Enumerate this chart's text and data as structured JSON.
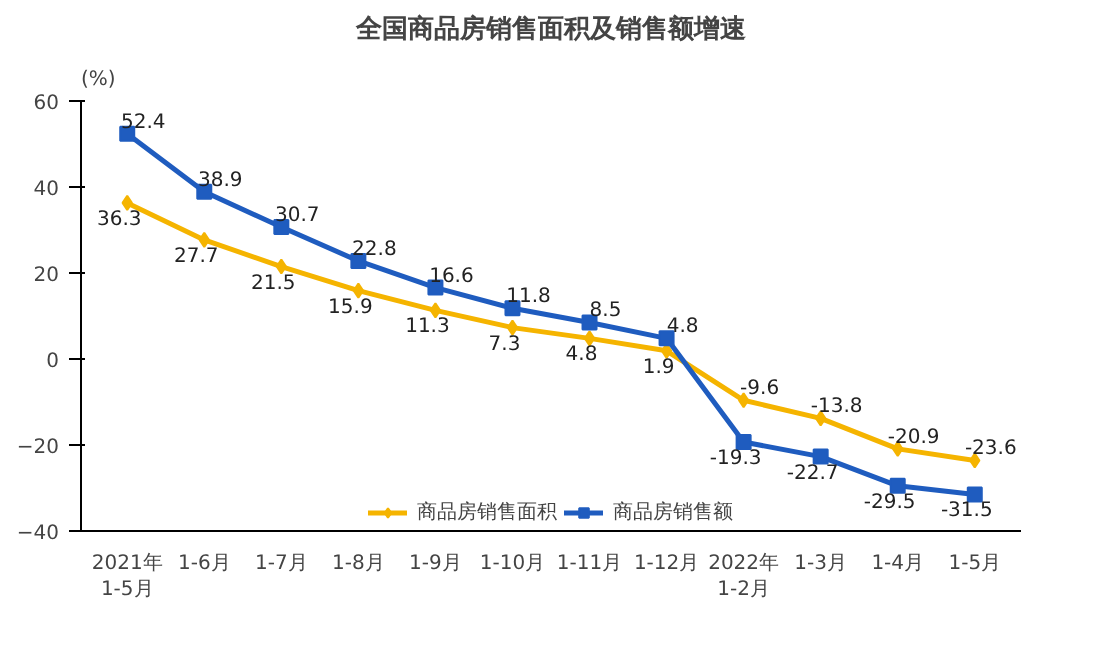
{
  "chart_data": {
    "type": "line",
    "title": "全国商品房销售面积及销售额增速",
    "ylabel": "(%)",
    "categories": [
      "2021年\n1-5月",
      "1-6月",
      "1-7月",
      "1-8月",
      "1-9月",
      "1-10月",
      "1-11月",
      "1-12月",
      "2022年\n1-2月",
      "1-3月",
      "1-4月",
      "1-5月"
    ],
    "series": [
      {
        "name": "商品房销售面积",
        "color": "#f5b400",
        "marker": "diamond",
        "values": [
          36.3,
          27.7,
          21.5,
          15.9,
          11.3,
          7.3,
          4.8,
          1.9,
          -9.6,
          -13.8,
          -20.9,
          -23.6
        ]
      },
      {
        "name": "商品房销售额",
        "color": "#1f5cbf",
        "marker": "square",
        "values": [
          52.4,
          38.9,
          30.7,
          22.8,
          16.6,
          11.8,
          8.5,
          4.8,
          -19.3,
          -22.7,
          -29.5,
          -31.5
        ]
      }
    ],
    "ylim": [
      -40,
      60
    ],
    "yticks": [
      -40,
      -20,
      0,
      20,
      40,
      60
    ],
    "grid": false,
    "legend": "bottom",
    "data_labels": true,
    "line_style": "solid"
  }
}
